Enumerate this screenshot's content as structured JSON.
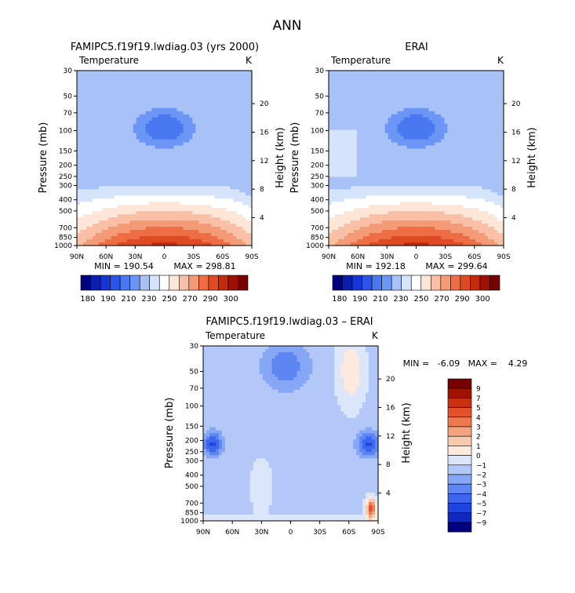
{
  "figure": {
    "title": "ANN"
  },
  "colors": {
    "panel_scale": [
      "#000080",
      "#0a1fb0",
      "#1535d8",
      "#2a55e8",
      "#4a78f0",
      "#6b96f5",
      "#a8c2f8",
      "#d6e4fb",
      "#ffffff",
      "#fde6d8",
      "#f9c0a5",
      "#f59a76",
      "#ef6d44",
      "#e04a22",
      "#c62a0c",
      "#a01004",
      "#780000"
    ],
    "diff_scale": [
      "#000080",
      "#1028c0",
      "#1e44e0",
      "#3c66ee",
      "#5e86f2",
      "#86a7f5",
      "#b3c8f8",
      "#dbe6fb",
      "#fdeadc",
      "#f9c9ad",
      "#f5a27e",
      "#ef7a4f",
      "#e2512a",
      "#c83010",
      "#a01200",
      "#780000"
    ]
  },
  "chart_data": [
    {
      "type": "heatmap",
      "title": "FAMIPC5.f19f19.lwdiag.03 (yrs 2000)",
      "variable": "Temperature",
      "units": "K",
      "ylabel": "Pressure (mb)",
      "y2label": "Height (km)",
      "xticks": [
        "90N",
        "60N",
        "30N",
        "0",
        "30S",
        "60S",
        "90S"
      ],
      "yticks": [
        "30",
        "50",
        "70",
        "100",
        "150",
        "200",
        "250",
        "300",
        "400",
        "500",
        "700",
        "850",
        "1000"
      ],
      "y2ticks": [
        "20",
        "16",
        "12",
        "8",
        "4"
      ],
      "min_label": "MIN = 190.54",
      "max_label": "MAX = 298.81",
      "min": 190.54,
      "max": 298.81,
      "colorbar_labels": [
        "180",
        "190",
        "210",
        "230",
        "250",
        "270",
        "290",
        "300"
      ],
      "colorbar_levels": [
        180,
        185,
        190,
        200,
        210,
        220,
        230,
        240,
        250,
        260,
        270,
        280,
        290,
        295,
        300
      ]
    },
    {
      "type": "heatmap",
      "title": "ERAI",
      "variable": "Temperature",
      "units": "K",
      "ylabel": "Pressure (mb)",
      "y2label": "Height (km)",
      "xticks": [
        "90N",
        "60N",
        "30N",
        "0",
        "30S",
        "60S",
        "90S"
      ],
      "yticks": [
        "30",
        "50",
        "70",
        "100",
        "150",
        "200",
        "250",
        "300",
        "400",
        "500",
        "700",
        "850",
        "1000"
      ],
      "y2ticks": [
        "20",
        "16",
        "12",
        "8",
        "4"
      ],
      "min_label": "MIN = 192.18",
      "max_label": "MAX = 299.64",
      "min": 192.18,
      "max": 299.64,
      "colorbar_labels": [
        "180",
        "190",
        "210",
        "230",
        "250",
        "270",
        "290",
        "300"
      ],
      "colorbar_levels": [
        180,
        185,
        190,
        200,
        210,
        220,
        230,
        240,
        250,
        260,
        270,
        280,
        290,
        295,
        300
      ]
    },
    {
      "type": "heatmap",
      "title": "FAMIPC5.f19f19.lwdiag.03 – ERAI",
      "variable": "Temperature",
      "units": "K",
      "ylabel": "Pressure (mb)",
      "y2label": "Height (km)",
      "xticks": [
        "90N",
        "60N",
        "30N",
        "0",
        "30S",
        "60S",
        "90S"
      ],
      "yticks": [
        "30",
        "50",
        "70",
        "100",
        "150",
        "200",
        "250",
        "300",
        "400",
        "500",
        "700",
        "850",
        "1000"
      ],
      "y2ticks": [
        "20",
        "16",
        "12",
        "8",
        "4"
      ],
      "minmax_label": "MIN =   -6.09   MAX =    4.29",
      "min": -6.09,
      "max": 4.29,
      "colorbar_labels": [
        "9",
        "7",
        "5",
        "4",
        "3",
        "2",
        "1",
        "0",
        "−1",
        "−2",
        "−3",
        "−4",
        "−5",
        "−7",
        "−9"
      ]
    }
  ]
}
